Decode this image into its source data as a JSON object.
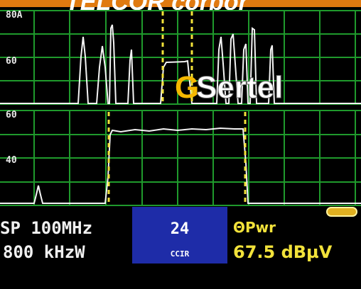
{
  "header": {
    "brand": "TELCOR corpor"
  },
  "upper_panel": {
    "top_label": "80A",
    "level_label": "60"
  },
  "lower_panel": {
    "top_label": "60",
    "level_label": "40"
  },
  "watermark": {
    "first": "G",
    "rest": "Sertel"
  },
  "footer": {
    "span": "SP 100MHz",
    "rbw": "800 kHzW",
    "channel": "24",
    "channel_plan": "CCIR",
    "mode": "ΘPwr",
    "reading": "67.5 dBµV"
  }
}
